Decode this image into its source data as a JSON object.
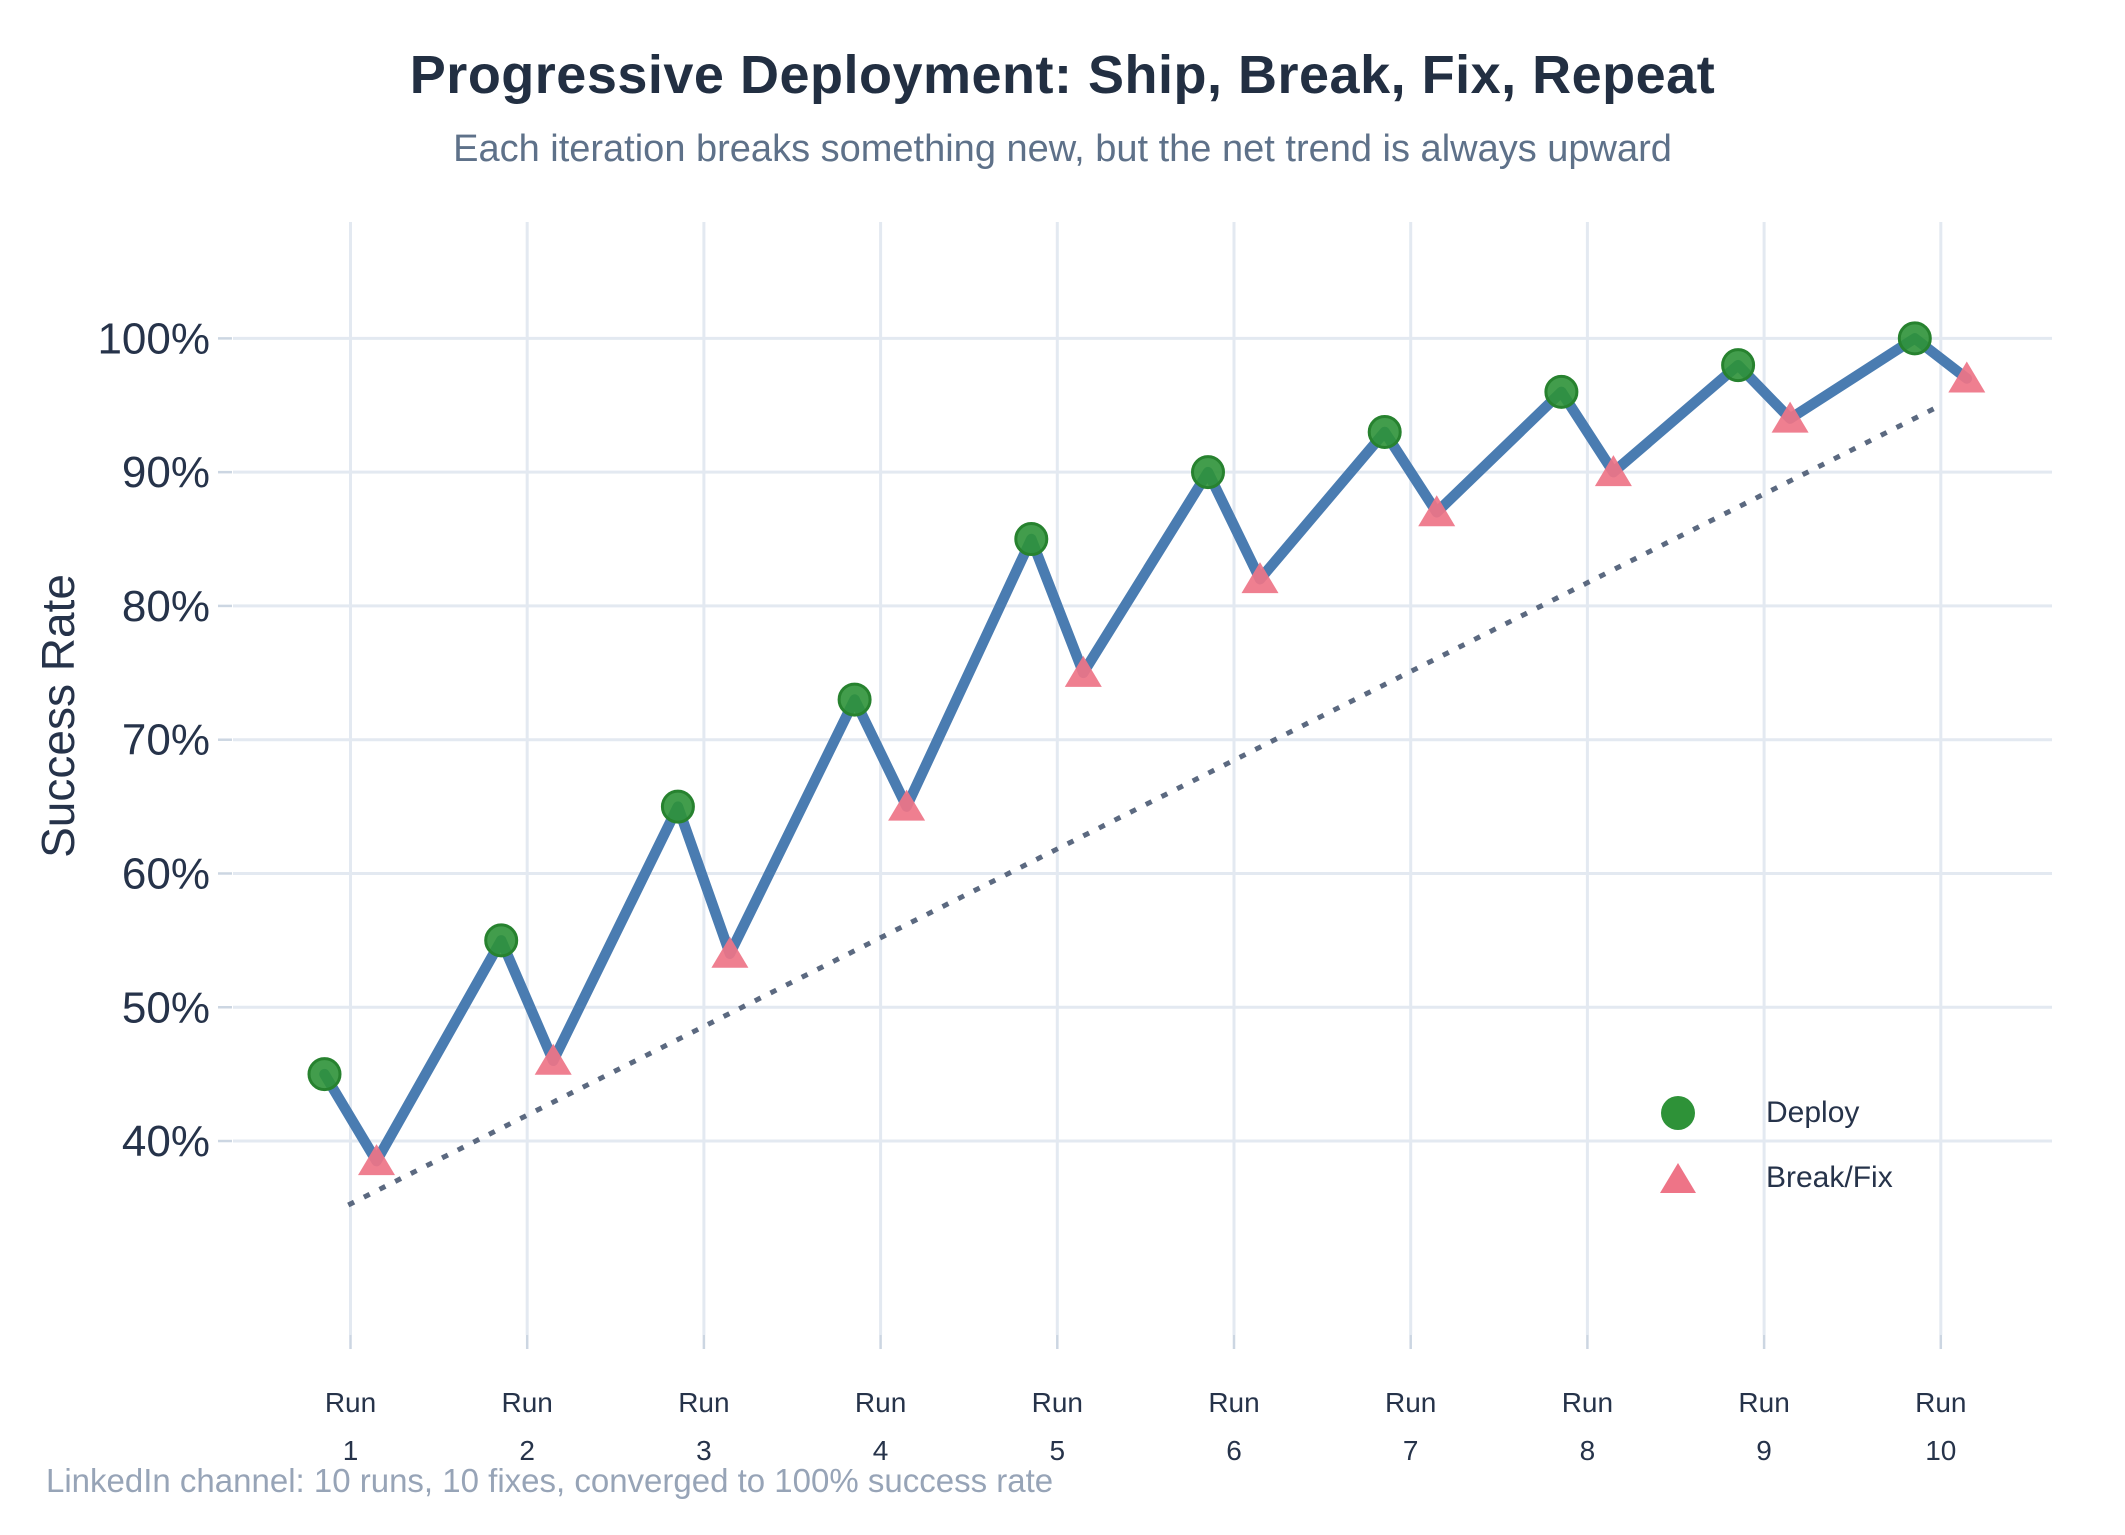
{
  "chart_data": {
    "type": "line",
    "title": "Progressive Deployment: Ship, Break, Fix, Repeat",
    "subtitle": "Each iteration breaks something new, but the net trend is always upward",
    "note": "LinkedIn channel: 10 runs, 10 fixes, converged to 100% success rate",
    "xlabel": "",
    "ylabel": "Success Rate",
    "categories": [
      "Run 1",
      "Run 2",
      "Run 3",
      "Run 4",
      "Run 5",
      "Run 6",
      "Run 7",
      "Run 8",
      "Run 9",
      "Run 10"
    ],
    "x_ticks": [
      [
        "Run",
        "1"
      ],
      [
        "Run",
        "2"
      ],
      [
        "Run",
        "3"
      ],
      [
        "Run",
        "4"
      ],
      [
        "Run",
        "5"
      ],
      [
        "Run",
        "6"
      ],
      [
        "Run",
        "7"
      ],
      [
        "Run",
        "8"
      ],
      [
        "Run",
        "9"
      ],
      [
        "Run",
        "10"
      ]
    ],
    "y_ticks": [
      40,
      50,
      60,
      70,
      80,
      90,
      100
    ],
    "y_tick_suffix": "%",
    "ylim": [
      25.5,
      108.7
    ],
    "grid": true,
    "legend_position": "lower right",
    "series": [
      {
        "name": "Deploy",
        "marker": "circle",
        "values": [
          45,
          55,
          65,
          73,
          85,
          90,
          93,
          96,
          98,
          100
        ]
      },
      {
        "name": "Break/Fix",
        "marker": "triangle",
        "values": [
          38.5,
          46,
          54,
          65,
          75,
          82,
          87,
          90,
          94,
          97
        ]
      }
    ],
    "connector": "single zigzag line through deploy then break/fix point of each run",
    "trend": {
      "style": "dotted",
      "x": [
        1,
        10
      ],
      "y": [
        35.3,
        95.0
      ]
    },
    "colors": {
      "line": "#4a7cb1",
      "deploy": "#2e9238",
      "deploy_edge": "#27822f",
      "breakfix": "#ee7487",
      "trend": "#5b6980",
      "grid": "#e3e9f1",
      "tick": "#ccd6e2",
      "axis_text": "#26334a",
      "title": "#222f42",
      "subtitle": "#5e7189",
      "footer": "#97a4b7"
    }
  }
}
